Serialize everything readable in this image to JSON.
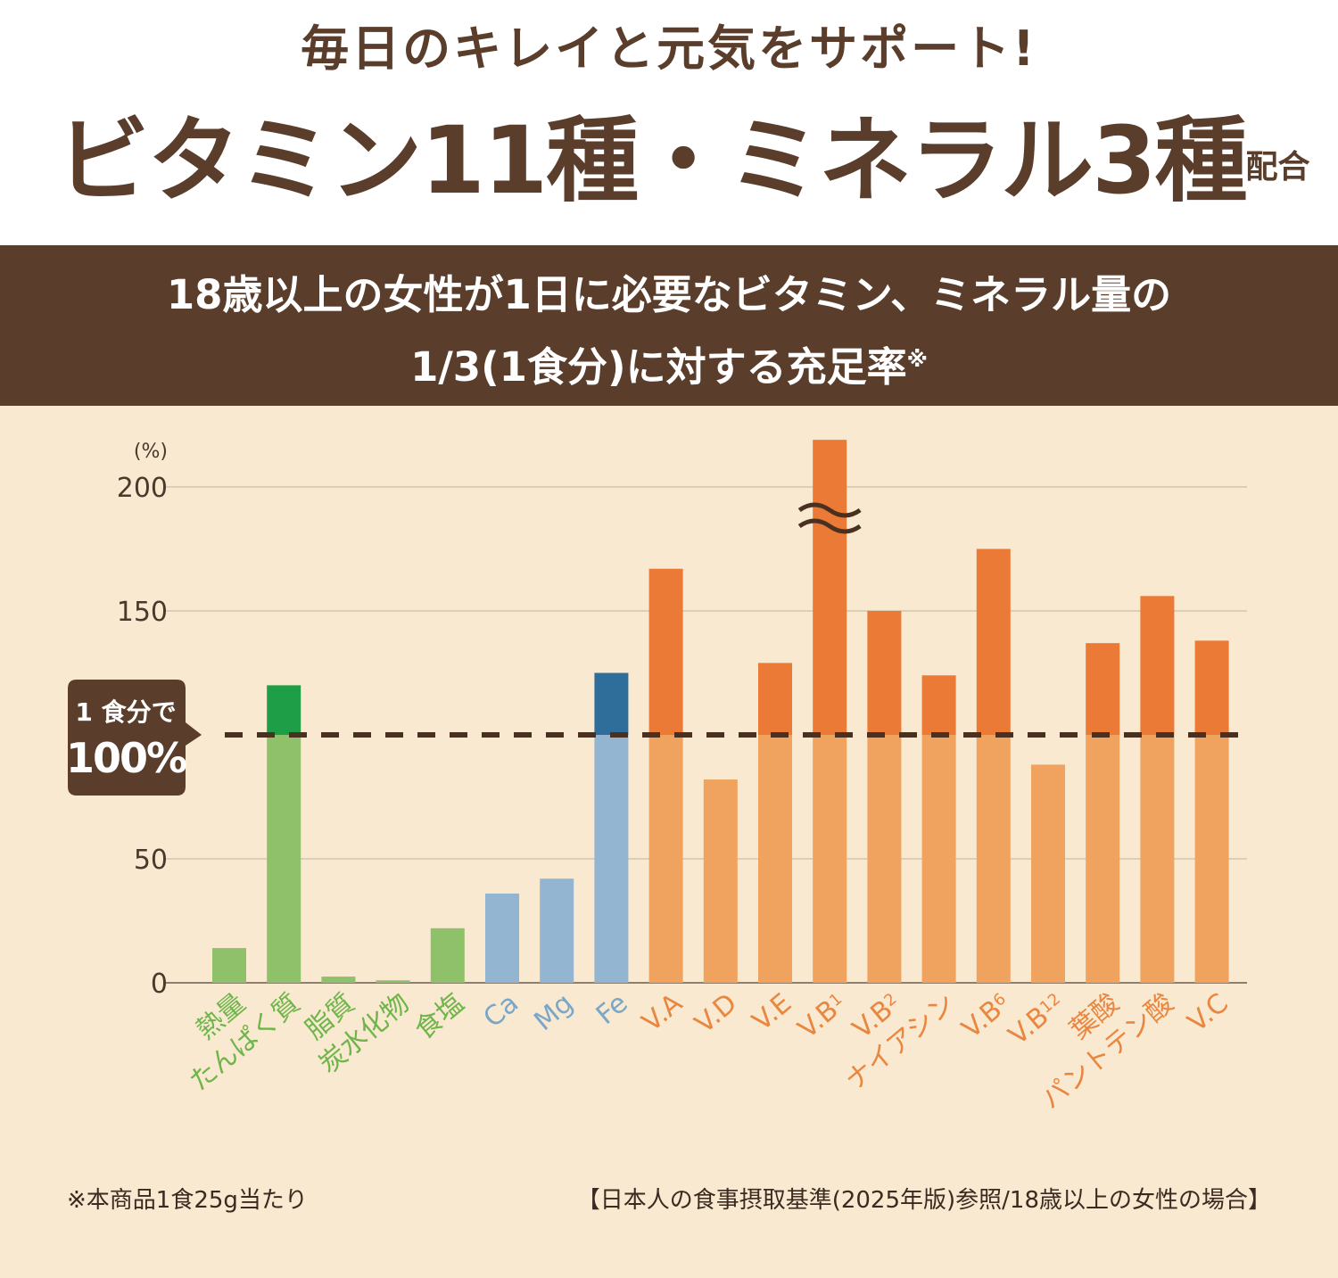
{
  "header": {
    "tagline": "毎日のキレイと元気をサポート!",
    "headline_a": "ビタミン11種・ミネラル3種",
    "headline_b": "配合"
  },
  "band": {
    "line1": "18歳以上の女性が1日に必要なビタミン、ミネラル量の",
    "line2": "1/3(1食分)に対する充足率",
    "mark": "※"
  },
  "callout": {
    "line1": "1 食分で",
    "line2": "100%"
  },
  "footer": {
    "note": "※本商品1食25g当たり",
    "reference": "【日本人の食事摂取基準(2025年版)参照/18歳以上の女性の場合】"
  },
  "colors": {
    "brown": "#5a3d2b",
    "green_light": "#8fc06a",
    "green_dark": "#1f9e48",
    "blue_light": "#93b5d1",
    "blue_dark": "#2f6e9b",
    "orange_light": "#f0a35f",
    "orange_dark": "#ea7a35"
  },
  "chart_data": {
    "type": "bar",
    "title": "18歳以上の女性が1日に必要なビタミン、ミネラル量の1/3(1食分)に対する充足率",
    "ylabel": "(%)",
    "ylim": [
      0,
      220
    ],
    "yticks": [
      0,
      50,
      150,
      200
    ],
    "grid": true,
    "reference_line": 100,
    "categories": [
      {
        "label": "熱量",
        "sub": "",
        "group": "green"
      },
      {
        "label": "たんぱく質",
        "sub": "",
        "group": "green"
      },
      {
        "label": "脂質",
        "sub": "",
        "group": "green"
      },
      {
        "label": "炭水化物",
        "sub": "",
        "group": "green"
      },
      {
        "label": "食塩",
        "sub": "",
        "group": "green"
      },
      {
        "label": "Ca",
        "sub": "",
        "group": "blue"
      },
      {
        "label": "Mg",
        "sub": "",
        "group": "blue"
      },
      {
        "label": "Fe",
        "sub": "",
        "group": "blue"
      },
      {
        "label": "V.A",
        "sub": "",
        "group": "orange"
      },
      {
        "label": "V.D",
        "sub": "",
        "group": "orange"
      },
      {
        "label": "V.E",
        "sub": "",
        "group": "orange"
      },
      {
        "label": "V.B",
        "sub": "1",
        "group": "orange"
      },
      {
        "label": "V.B",
        "sub": "2",
        "group": "orange"
      },
      {
        "label": "ナイアシン",
        "sub": "",
        "group": "orange"
      },
      {
        "label": "V.B",
        "sub": "6",
        "group": "orange"
      },
      {
        "label": "V.B",
        "sub": "12",
        "group": "orange"
      },
      {
        "label": "葉酸",
        "sub": "",
        "group": "orange"
      },
      {
        "label": "パントテン酸",
        "sub": "",
        "group": "orange"
      },
      {
        "label": "V.C",
        "sub": "",
        "group": "orange"
      }
    ],
    "values": [
      14,
      120,
      2.5,
      1,
      22,
      36,
      42,
      125,
      167,
      82,
      129,
      219,
      150,
      124,
      175,
      88,
      137,
      156,
      138
    ],
    "axis_break": [
      false,
      false,
      false,
      false,
      false,
      false,
      false,
      false,
      false,
      false,
      false,
      true,
      false,
      false,
      false,
      false,
      false,
      false,
      false
    ]
  }
}
